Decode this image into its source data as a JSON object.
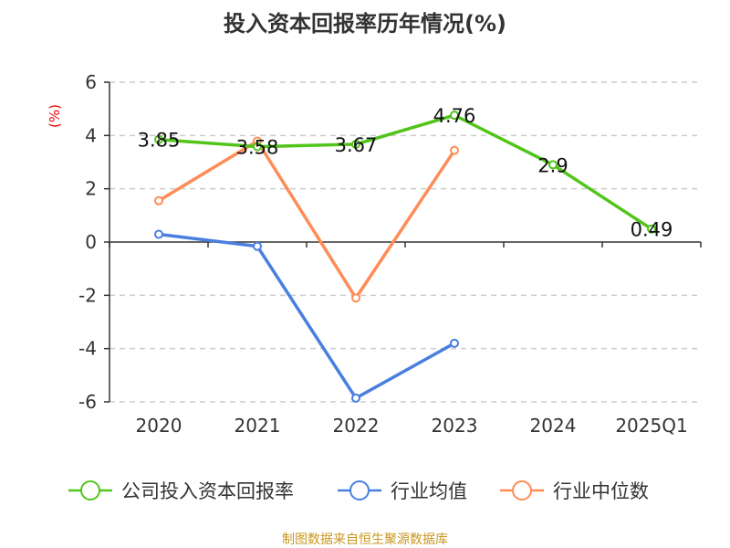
{
  "chart_data": {
    "type": "line",
    "title": "投入资本回报率历年情况(%)",
    "ylabel": "(%)",
    "categories": [
      "2020",
      "2021",
      "2022",
      "2023",
      "2024",
      "2025Q1"
    ],
    "ylim": [
      -6,
      6
    ],
    "yticks": [
      -6,
      -4,
      -2,
      0,
      2,
      4,
      6
    ],
    "grid": true,
    "legend_position": "bottom",
    "series": [
      {
        "name": "公司投入资本回报率",
        "color": "#52c41a",
        "values": [
          3.85,
          3.58,
          3.67,
          4.76,
          2.9,
          0.49
        ],
        "labels": [
          "3.85",
          "3.58",
          "3.67",
          "4.76",
          "2.9",
          "0.49"
        ]
      },
      {
        "name": "行业均值",
        "color": "#4a7fe0",
        "values": [
          0.29,
          -0.16,
          -5.86,
          -3.8,
          null,
          null
        ]
      },
      {
        "name": "行业中位数",
        "color": "#ff8c55",
        "values": [
          1.55,
          3.79,
          -2.1,
          3.44,
          null,
          null
        ]
      }
    ]
  },
  "footer": "制图数据来自恒生聚源数据库"
}
